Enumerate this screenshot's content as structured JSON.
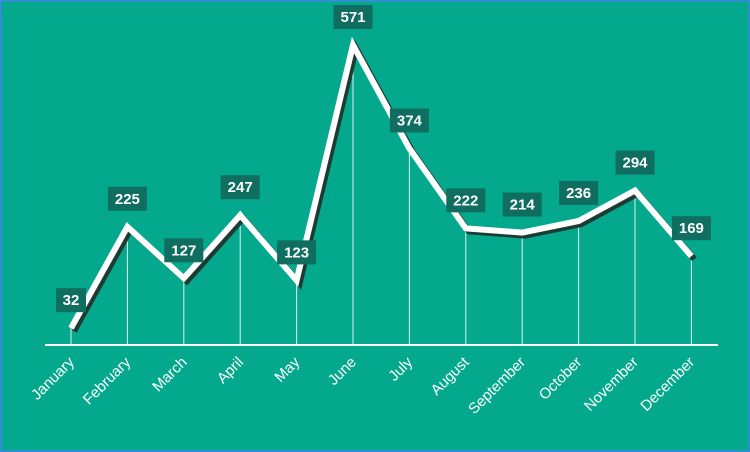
{
  "chart_data": {
    "type": "line",
    "title": "",
    "xlabel": "",
    "ylabel": "",
    "categories": [
      "January",
      "February",
      "March",
      "April",
      "May",
      "June",
      "July",
      "August",
      "September",
      "October",
      "November",
      "December"
    ],
    "values": [
      32,
      225,
      127,
      247,
      123,
      571,
      374,
      222,
      214,
      236,
      294,
      169
    ],
    "ylim": [
      0,
      600
    ],
    "grid": false,
    "legend": "none",
    "data_labels": true,
    "drop_lines": true
  },
  "colors": {
    "background": "#04a98d",
    "frame_border": "#2f8fd0",
    "line": "#ffffff",
    "line_shadow": "#1d3b33",
    "label_box": "#0f6e5f",
    "text": "#ffffff"
  }
}
